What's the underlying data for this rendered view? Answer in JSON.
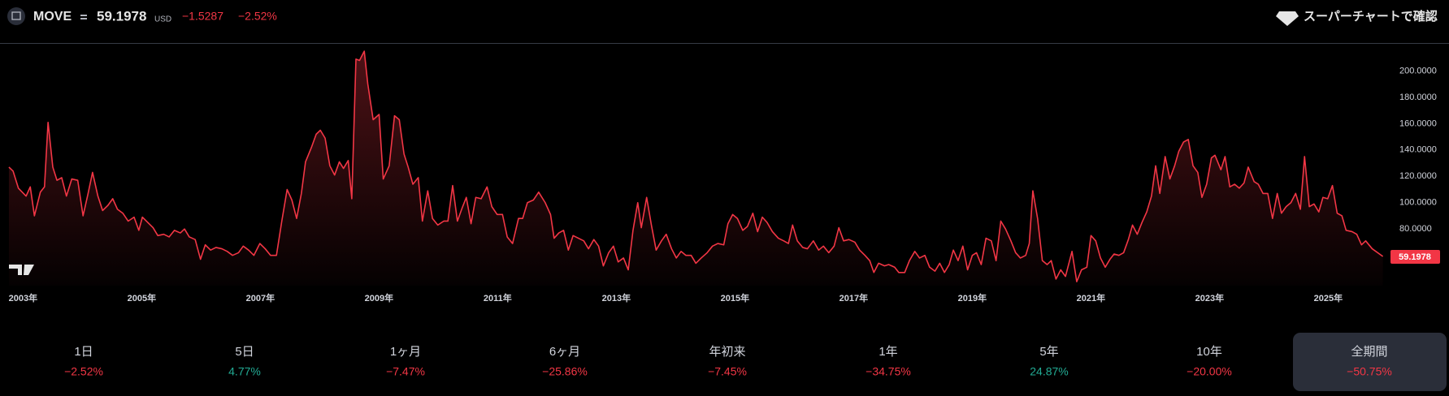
{
  "header": {
    "symbol": "MOVE",
    "price": "59.1978",
    "currency": "USD",
    "change": "−1.5287",
    "change_pct": "−2.52%",
    "cta": "スーパーチャートで確認"
  },
  "chart_data": {
    "type": "area",
    "color": "#f23645",
    "grid": false,
    "x": [
      2002.83,
      2002.9,
      2002.99,
      2003.12,
      2003.19,
      2003.26,
      2003.36,
      2003.43,
      2003.49,
      2003.57,
      2003.64,
      2003.72,
      2003.8,
      2003.89,
      2003.99,
      2004.08,
      2004.16,
      2004.24,
      2004.33,
      2004.41,
      2004.5,
      2004.58,
      2004.66,
      2004.75,
      2004.84,
      2004.94,
      2005.02,
      2005.08,
      2005.17,
      2005.26,
      2005.34,
      2005.44,
      2005.53,
      2005.62,
      2005.72,
      2005.79,
      2005.87,
      2005.97,
      2006.06,
      2006.14,
      2006.23,
      2006.32,
      2006.42,
      2006.51,
      2006.6,
      2006.7,
      2006.78,
      2006.87,
      2006.96,
      2007.06,
      2007.15,
      2007.24,
      2007.34,
      2007.43,
      2007.52,
      2007.6,
      2007.68,
      2007.76,
      2007.83,
      2007.93,
      2008.01,
      2008.08,
      2008.16,
      2008.24,
      2008.32,
      2008.4,
      2008.47,
      2008.55,
      2008.61,
      2008.68,
      2008.74,
      2008.82,
      2008.88,
      2008.97,
      2009.07,
      2009.14,
      2009.24,
      2009.33,
      2009.41,
      2009.49,
      2009.56,
      2009.64,
      2009.73,
      2009.8,
      2009.89,
      2009.97,
      2010.06,
      2010.16,
      2010.23,
      2010.31,
      2010.39,
      2010.47,
      2010.54,
      2010.62,
      2010.7,
      2010.79,
      2010.89,
      2010.97,
      2011.06,
      2011.15,
      2011.23,
      2011.32,
      2011.42,
      2011.49,
      2011.57,
      2011.67,
      2011.76,
      2011.87,
      2011.96,
      2012.02,
      2012.1,
      2012.18,
      2012.26,
      2012.34,
      2012.43,
      2012.52,
      2012.6,
      2012.69,
      2012.77,
      2012.85,
      2012.94,
      2013.02,
      2013.1,
      2013.19,
      2013.27,
      2013.35,
      2013.43,
      2013.49,
      2013.58,
      2013.66,
      2013.74,
      2013.83,
      2013.91,
      2014.0,
      2014.08,
      2014.16,
      2014.24,
      2014.33,
      2014.41,
      2014.5,
      2014.6,
      2014.69,
      2014.78,
      2014.88,
      2014.95,
      2015.03,
      2015.11,
      2015.2,
      2015.28,
      2015.37,
      2015.45,
      2015.53,
      2015.61,
      2015.7,
      2015.8,
      2015.89,
      2015.97,
      2016.04,
      2016.12,
      2016.21,
      2016.29,
      2016.39,
      2016.48,
      2016.56,
      2016.65,
      2016.74,
      2016.82,
      2016.9,
      2016.99,
      2017.09,
      2017.17,
      2017.26,
      2017.34,
      2017.41,
      2017.49,
      2017.59,
      2017.66,
      2017.76,
      2017.83,
      2017.93,
      2018.01,
      2018.1,
      2018.18,
      2018.27,
      2018.35,
      2018.44,
      2018.52,
      2018.6,
      2018.68,
      2018.75,
      2018.83,
      2018.91,
      2018.99,
      2019.07,
      2019.14,
      2019.22,
      2019.3,
      2019.39,
      2019.47,
      2019.55,
      2019.63,
      2019.72,
      2019.8,
      2019.88,
      2019.97,
      2020.03,
      2020.09,
      2020.17,
      2020.25,
      2020.33,
      2020.4,
      2020.48,
      2020.56,
      2020.64,
      2020.75,
      2020.83,
      2020.91,
      2021.0,
      2021.07,
      2021.15,
      2021.23,
      2021.31,
      2021.39,
      2021.46,
      2021.54,
      2021.62,
      2021.7,
      2021.77,
      2021.85,
      2021.93,
      2022.01,
      2022.09,
      2022.16,
      2022.23,
      2022.32,
      2022.4,
      2022.48,
      2022.55,
      2022.63,
      2022.71,
      2022.79,
      2022.87,
      2022.94,
      2023.02,
      2023.1,
      2023.16,
      2023.26,
      2023.33,
      2023.41,
      2023.49,
      2023.57,
      2023.65,
      2023.72,
      2023.82,
      2023.89,
      2023.97,
      2024.05,
      2024.13,
      2024.21,
      2024.28,
      2024.36,
      2024.44,
      2024.52,
      2024.6,
      2024.67,
      2024.75,
      2024.83,
      2024.91,
      2024.98,
      2025.06,
      2025.14,
      2025.22,
      2025.3,
      2025.37,
      2025.47,
      2025.55,
      2025.63,
      2025.7,
      2025.81,
      2025.99
    ],
    "values": [
      127,
      124,
      111,
      105,
      112,
      90,
      108,
      112,
      161,
      127,
      117,
      119,
      105,
      118,
      117,
      90,
      106,
      123,
      105,
      94,
      98,
      103,
      95,
      92,
      86,
      89,
      79,
      89,
      85,
      81,
      75,
      76,
      74,
      79,
      77,
      80,
      74,
      72,
      57,
      68,
      64,
      66,
      65,
      63,
      60,
      62,
      67,
      64,
      60,
      69,
      65,
      60,
      60,
      86,
      110,
      102,
      88,
      107,
      131,
      142,
      152,
      155,
      149,
      128,
      121,
      131,
      126,
      132,
      103,
      209,
      208,
      215,
      190,
      163,
      167,
      118,
      128,
      166,
      163,
      137,
      127,
      114,
      119,
      86,
      109,
      88,
      83,
      86,
      86,
      113,
      86,
      96,
      104,
      84,
      104,
      103,
      112,
      97,
      91,
      91,
      74,
      69,
      88,
      88,
      100,
      102,
      108,
      100,
      91,
      73,
      77,
      79,
      64,
      75,
      73,
      71,
      65,
      72,
      67,
      52,
      62,
      67,
      55,
      58,
      49,
      79,
      100,
      81,
      104,
      83,
      64,
      71,
      76,
      65,
      58,
      63,
      60,
      60,
      54,
      58,
      62,
      67,
      69,
      68,
      84,
      91,
      88,
      79,
      82,
      92,
      78,
      89,
      85,
      78,
      73,
      71,
      69,
      83,
      71,
      66,
      65,
      71,
      64,
      67,
      62,
      67,
      81,
      71,
      72,
      70,
      64,
      60,
      56,
      47,
      54,
      52,
      53,
      51,
      47,
      47,
      56,
      63,
      58,
      60,
      51,
      48,
      54,
      47,
      53,
      64,
      56,
      67,
      49,
      60,
      62,
      53,
      73,
      71,
      56,
      86,
      80,
      71,
      62,
      58,
      60,
      69,
      109,
      88,
      56,
      53,
      56,
      42,
      49,
      44,
      63,
      40,
      49,
      51,
      75,
      71,
      58,
      51,
      57,
      61,
      60,
      62,
      72,
      83,
      76,
      85,
      93,
      105,
      128,
      107,
      135,
      118,
      128,
      139,
      146,
      148,
      128,
      123,
      104,
      114,
      134,
      136,
      125,
      135,
      112,
      114,
      111,
      115,
      127,
      116,
      114,
      107,
      107,
      88,
      107,
      92,
      97,
      100,
      107,
      95,
      135,
      97,
      99,
      93,
      104,
      103,
      113,
      92,
      90,
      79,
      78,
      76,
      68,
      71,
      65,
      59.1978
    ],
    "xlim": [
      2002.68,
      2026.05
    ],
    "xticks": [
      {
        "value": 2003,
        "label": "2003年"
      },
      {
        "value": 2005,
        "label": "2005年"
      },
      {
        "value": 2007,
        "label": "2007年"
      },
      {
        "value": 2009,
        "label": "2009年"
      },
      {
        "value": 2011,
        "label": "2011年"
      },
      {
        "value": 2013,
        "label": "2013年"
      },
      {
        "value": 2015,
        "label": "2015年"
      },
      {
        "value": 2017,
        "label": "2017年"
      },
      {
        "value": 2019,
        "label": "2019年"
      },
      {
        "value": 2021,
        "label": "2021年"
      },
      {
        "value": 2023,
        "label": "2023年"
      },
      {
        "value": 2025,
        "label": "2025年"
      }
    ],
    "ylim": [
      37,
      220
    ],
    "yticks": [
      {
        "value": 80,
        "label": "80.0000"
      },
      {
        "value": 100,
        "label": "100.0000"
      },
      {
        "value": 120,
        "label": "120.0000"
      },
      {
        "value": 140,
        "label": "140.0000"
      },
      {
        "value": 160,
        "label": "160.0000"
      },
      {
        "value": 180,
        "label": "180.0000"
      },
      {
        "value": 200,
        "label": "200.0000"
      }
    ]
  },
  "periods": [
    {
      "label": "1日",
      "change": "−2.52%",
      "color": "#f23645"
    },
    {
      "label": "5日",
      "change": "4.77%",
      "color": "#22ab94"
    },
    {
      "label": "1ヶ月",
      "change": "−7.47%",
      "color": "#f23645"
    },
    {
      "label": "6ヶ月",
      "change": "−25.86%",
      "color": "#f23645"
    },
    {
      "label": "年初来",
      "change": "−7.45%",
      "color": "#f23645"
    },
    {
      "label": "1年",
      "change": "−34.75%",
      "color": "#f23645"
    },
    {
      "label": "5年",
      "change": "24.87%",
      "color": "#22ab94"
    },
    {
      "label": "10年",
      "change": "−20.00%",
      "color": "#f23645"
    },
    {
      "label": "全期間",
      "change": "−50.75%",
      "color": "#f23645",
      "selected": true
    }
  ]
}
